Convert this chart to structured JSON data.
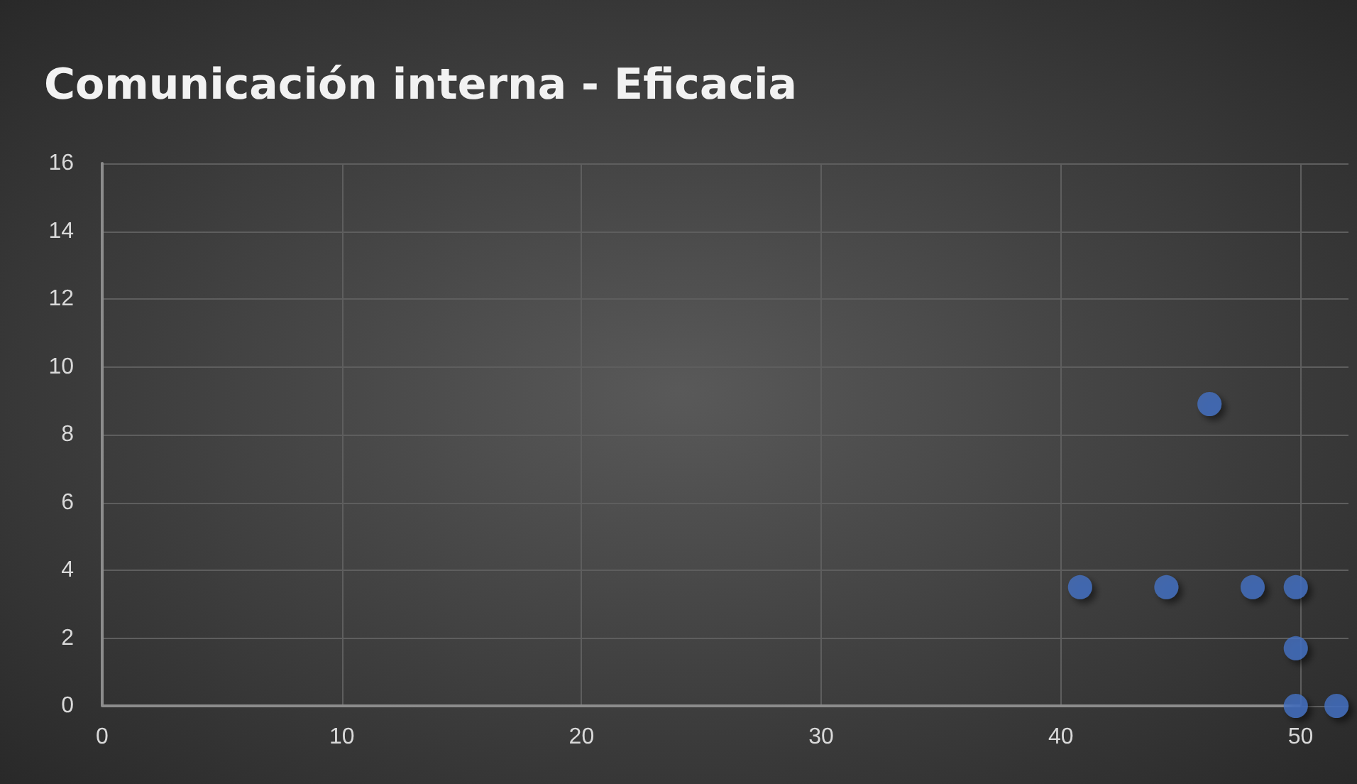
{
  "chart_data": {
    "type": "scatter",
    "title": "Comunicación interna - Eficacia",
    "x": [
      40.8,
      44.4,
      46.2,
      48.0,
      49.8,
      49.8,
      49.8,
      51.5
    ],
    "values": [
      3.5,
      3.5,
      8.9,
      3.5,
      3.5,
      1.7,
      0,
      0
    ],
    "color": "#4472c4",
    "marker": "circle",
    "xlim": [
      0,
      52
    ],
    "xticks": [
      0,
      10,
      20,
      30,
      40,
      50
    ],
    "ylim": [
      0,
      16
    ],
    "yticks": [
      0,
      2,
      4,
      6,
      8,
      10,
      12,
      14,
      16
    ],
    "grid": true
  }
}
